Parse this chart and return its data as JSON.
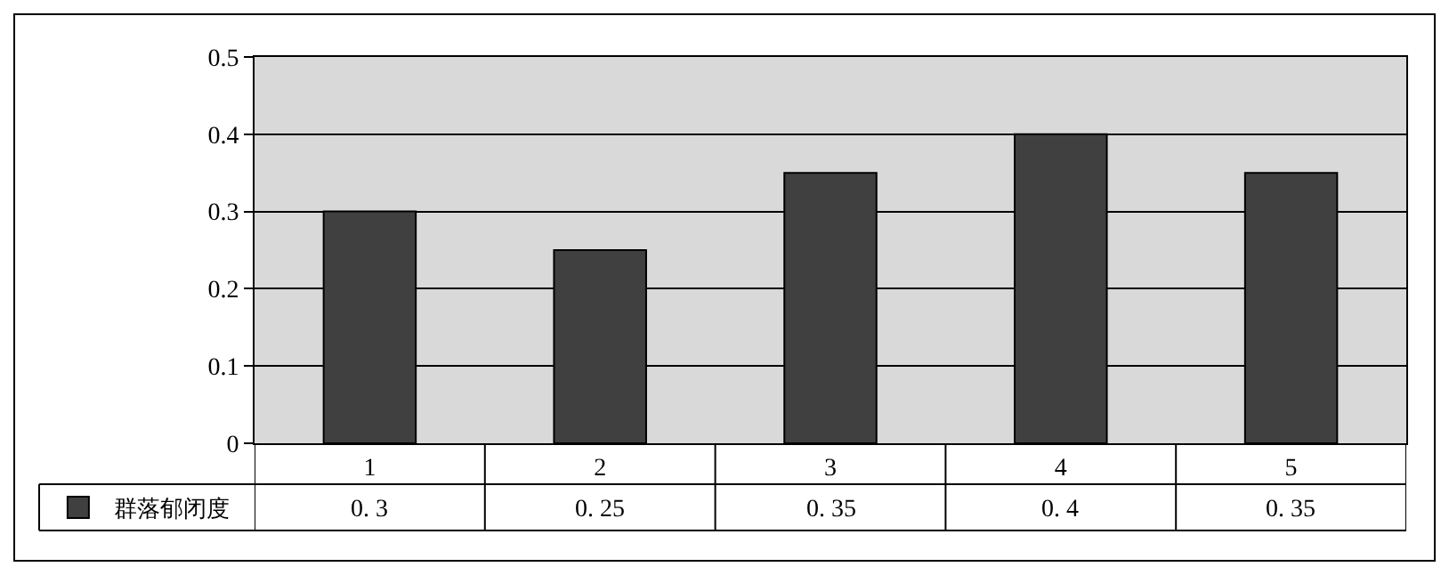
{
  "chart_data": {
    "type": "bar",
    "categories": [
      "1",
      "2",
      "3",
      "4",
      "5"
    ],
    "series": [
      {
        "name": "群落郁闭度",
        "color": "#404040",
        "values": [
          0.3,
          0.25,
          0.35,
          0.4,
          0.35
        ],
        "value_labels": [
          "0. 3",
          "0. 25",
          "0. 35",
          "0. 4",
          "0. 35"
        ]
      }
    ],
    "ylim": [
      0,
      0.5
    ],
    "yticks": [
      0,
      0.1,
      0.2,
      0.3,
      0.4,
      0.5
    ],
    "grid": "y",
    "legend": "bottom left"
  }
}
